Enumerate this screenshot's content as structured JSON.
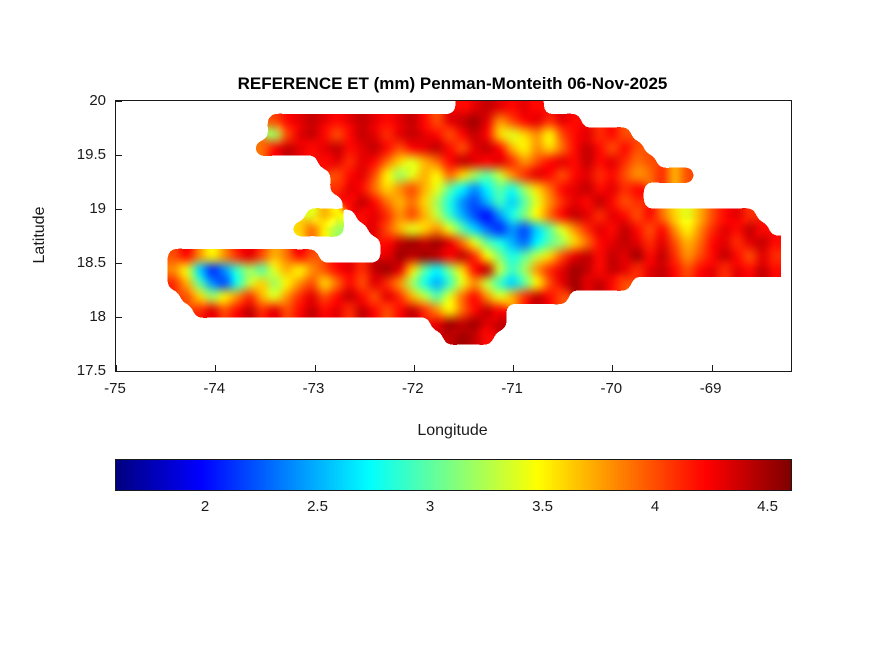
{
  "chart_data": {
    "type": "heatmap",
    "title": "REFERENCE ET (mm) Penman-Monteith 06-Nov-2025",
    "xlabel": "Longitude",
    "ylabel": "Latitude",
    "units": "mm",
    "xlim": [
      -75,
      -68.2
    ],
    "ylim": [
      17.5,
      20
    ],
    "grid_lines": false,
    "xticks": [
      {
        "v": -75,
        "label": "-75"
      },
      {
        "v": -74,
        "label": "-74"
      },
      {
        "v": -73,
        "label": "-73"
      },
      {
        "v": -72,
        "label": "-72"
      },
      {
        "v": -71,
        "label": "-71"
      },
      {
        "v": -70,
        "label": "-70"
      },
      {
        "v": -69,
        "label": "-69"
      }
    ],
    "yticks": [
      {
        "v": 20,
        "label": "20"
      },
      {
        "v": 19.5,
        "label": "19.5"
      },
      {
        "v": 19,
        "label": "19"
      },
      {
        "v": 18.5,
        "label": "18.5"
      },
      {
        "v": 18,
        "label": "18"
      },
      {
        "v": 17.5,
        "label": "17.5"
      }
    ],
    "colormap": "jet",
    "colorbar": {
      "orientation": "horizontal",
      "min": 1.6,
      "max": 4.6,
      "ticks": [
        {
          "v": 2,
          "label": "2"
        },
        {
          "v": 2.5,
          "label": "2.5"
        },
        {
          "v": 3,
          "label": "3"
        },
        {
          "v": 3.5,
          "label": "3.5"
        },
        {
          "v": 4,
          "label": "4"
        },
        {
          "v": 4.5,
          "label": "4.5"
        }
      ]
    },
    "grid": {
      "ncols": 50,
      "nrows": 20,
      "lon_start": -74.6,
      "lon_step": 0.126,
      "lat_start": 20.0,
      "lat_step": -0.125,
      "rows": [
        [
          {
            "start": 24,
            "vals": [
              4.2,
              4.3,
              4.4,
              4.3,
              4.2,
              4.3,
              4.2
            ]
          }
        ],
        [
          {
            "start": 9,
            "vals": [
              4.0,
              4.2,
              4.3,
              4.4,
              4.3,
              4.2,
              4.3,
              4.4,
              4.3,
              4.2,
              4.3,
              4.4,
              4.2,
              4.0,
              4.3,
              4.4,
              4.5,
              4.3,
              3.8,
              4.0,
              4.2,
              4.3,
              4.1,
              4.3,
              4.2
            ]
          }
        ],
        [
          {
            "start": 9,
            "vals": [
              3.2,
              4.0,
              4.3,
              4.4,
              4.2,
              4.0,
              4.2,
              4.4,
              4.3,
              4.1,
              4.3,
              4.4,
              4.3,
              4.2,
              4.0,
              4.2,
              4.4,
              4.2,
              3.6,
              3.4,
              3.6,
              3.8,
              3.5,
              4.0,
              4.2,
              4.3,
              4.1,
              4.2,
              4.0
            ]
          }
        ],
        [
          {
            "start": 8,
            "vals": [
              3.9,
              4.2,
              4.4,
              4.3,
              4.2,
              4.3,
              4.4,
              4.2,
              4.3,
              4.4,
              4.2,
              4.0,
              4.2,
              4.3,
              4.4,
              4.2,
              4.0,
              4.3,
              4.4,
              4.2,
              3.7,
              3.5,
              3.8,
              3.6,
              3.9,
              4.2,
              4.4,
              4.2,
              4.0,
              4.2,
              4.0
            ]
          }
        ],
        [
          {
            "start": 13,
            "vals": [
              4.2,
              4.3,
              4.1,
              4.3,
              4.2,
              3.9,
              3.6,
              3.4,
              3.7,
              3.9,
              4.2,
              4.4,
              4.3,
              4.2,
              4.3,
              4.1,
              3.8,
              4.0,
              4.2,
              4.3,
              4.2,
              4.4,
              4.2,
              4.3,
              4.1,
              3.9,
              4.0
            ]
          }
        ],
        [
          {
            "start": 14,
            "vals": [
              4.0,
              4.2,
              4.3,
              4.0,
              3.5,
              3.2,
              3.4,
              3.7,
              3.5,
              3.9,
              3.6,
              3.2,
              3.0,
              3.3,
              3.8,
              4.1,
              4.3,
              4.2,
              4.0,
              4.2,
              4.3,
              4.1,
              4.2,
              4.0,
              3.8,
              3.9,
              4.1,
              3.7,
              4.0
            ]
          }
        ],
        [
          {
            "start": 14,
            "vals": [
              4.1,
              4.3,
              4.2,
              3.9,
              3.6,
              3.8,
              4.0,
              3.7,
              3.4,
              3.0,
              2.7,
              2.4,
              2.7,
              3.0,
              2.8,
              3.2,
              3.6,
              3.9,
              4.2,
              4.3,
              4.4,
              4.2,
              4.3,
              4.1,
              4.2
            ]
          }
        ],
        [
          {
            "start": 15,
            "vals": [
              4.2,
              4.4,
              4.2,
              3.9,
              3.7,
              3.9,
              3.6,
              3.2,
              2.8,
              2.4,
              2.2,
              2.5,
              2.9,
              2.6,
              3.0,
              3.4,
              3.8,
              4.1,
              4.3,
              4.2,
              4.4,
              4.2,
              4.0,
              4.1
            ]
          }
        ],
        [
          {
            "start": 12,
            "vals": [
              3.4,
              3.7,
              3.5
            ]
          },
          {
            "start": 16,
            "vals": [
              4.2,
              4.3,
              4.1,
              3.8,
              4.0,
              3.7,
              3.3,
              2.9,
              2.5,
              2.2,
              2.0,
              2.4,
              2.8,
              3.1,
              3.5,
              3.9,
              4.2,
              4.4,
              4.3,
              4.1,
              4.3,
              4.2,
              4.0,
              4.2,
              3.9,
              3.6,
              3.4,
              3.7,
              4.0,
              4.2,
              4.3,
              4.1
            ]
          }
        ],
        [
          {
            "start": 11,
            "vals": [
              3.6,
              3.9,
              3.5,
              3.2
            ]
          },
          {
            "start": 17,
            "vals": [
              4.3,
              4.0,
              3.7,
              3.4,
              3.6,
              3.8,
              3.4,
              3.0,
              2.6,
              2.3,
              2.1,
              2.4,
              2.2,
              2.6,
              3.0,
              3.4,
              3.8,
              4.1,
              4.3,
              4.2,
              4.4,
              4.2,
              4.0,
              4.2,
              3.8,
              3.5,
              3.8,
              4.1,
              4.3,
              4.2,
              4.4,
              4.2
            ]
          }
        ],
        [
          {
            "start": 18,
            "vals": [
              4.2,
              4.4,
              4.5,
              4.4,
              4.5,
              4.3,
              3.9,
              3.4,
              3.0,
              2.8,
              2.5,
              2.3,
              2.7,
              3.0,
              3.2,
              3.6,
              3.9,
              4.2,
              4.3,
              4.4,
              4.3,
              4.1,
              4.3,
              4.0,
              3.7,
              3.9,
              4.2,
              4.3,
              4.1,
              4.3,
              4.4,
              4.2
            ]
          }
        ],
        [
          {
            "start": 1,
            "vals": [
              4.0,
              4.2,
              3.8,
              3.5,
              3.8,
              4.1,
              4.3,
              4.0,
              3.7,
              3.9,
              4.2,
              4.0
            ]
          },
          {
            "start": 18,
            "vals": [
              4.3,
              4.5,
              4.4,
              4.5,
              4.4,
              4.2,
              4.4,
              4.1,
              3.5,
              3.1,
              2.8,
              3.0,
              3.3,
              3.6,
              4.0,
              4.3,
              4.4,
              4.2,
              4.4,
              4.3,
              4.5,
              4.2,
              4.4,
              4.1,
              3.8,
              4.0,
              4.2,
              4.4,
              4.2,
              4.0,
              4.3,
              4.1
            ]
          }
        ],
        [
          {
            "start": 1,
            "vals": [
              3.8,
              3.4,
              2.6,
              2.1,
              2.4,
              2.9,
              3.2,
              3.0,
              3.4,
              3.7,
              3.5,
              3.8,
              4.0,
              4.2,
              4.3,
              4.1,
              4.4,
              4.5,
              4.3,
              3.6,
              3.0,
              2.7,
              3.1,
              3.6,
              4.2,
              4.4,
              3.3,
              2.9,
              3.2,
              3.8,
              4.1,
              4.3,
              4.5,
              4.4,
              4.2,
              4.4,
              4.3,
              4.1,
              4.3,
              4.4,
              4.2,
              4.0,
              4.2,
              4.3,
              4.1,
              4.3,
              4.2,
              4.4,
              4.2
            ]
          }
        ],
        [
          {
            "start": 1,
            "vals": [
              4.1,
              3.7,
              3.0,
              2.4,
              2.2,
              2.8,
              3.3,
              3.6,
              3.2,
              3.5,
              3.8,
              4.0,
              3.6,
              3.9,
              4.2,
              4.0,
              4.3,
              4.1,
              3.8,
              3.2,
              2.8,
              2.5,
              2.9,
              3.4,
              3.8,
              3.3,
              2.9,
              2.6,
              3.0,
              3.5,
              4.0,
              4.3,
              4.5,
              4.3,
              4.4,
              4.2,
              4.0
            ]
          }
        ],
        [
          {
            "start": 2,
            "vals": [
              4.0,
              3.6,
              3.2,
              3.5,
              3.8,
              4.1,
              3.7,
              3.4,
              3.8,
              4.1,
              4.3,
              4.0,
              4.2,
              4.4,
              4.2,
              4.0,
              4.3,
              4.1,
              3.7,
              3.3,
              3.0,
              3.4,
              3.9,
              4.2,
              3.8,
              3.4,
              3.7,
              4.1,
              4.4,
              4.2,
              4.0
            ]
          }
        ],
        [
          {
            "start": 3,
            "vals": [
              4.1,
              4.3,
              4.0,
              4.2,
              4.4,
              4.1,
              4.3,
              4.0,
              4.2,
              4.4,
              4.2,
              4.3,
              4.1,
              4.4,
              4.2,
              4.0,
              4.2,
              4.4,
              4.1,
              3.8,
              3.5,
              3.9,
              4.2,
              4.4,
              4.2
            ]
          }
        ],
        [
          {
            "start": 22,
            "vals": [
              4.3,
              4.5,
              4.4,
              4.5,
              4.3,
              4.4
            ]
          }
        ],
        [
          {
            "start": 23,
            "vals": [
              4.4,
              4.5,
              4.4,
              4.2
            ]
          }
        ],
        [],
        []
      ]
    }
  }
}
